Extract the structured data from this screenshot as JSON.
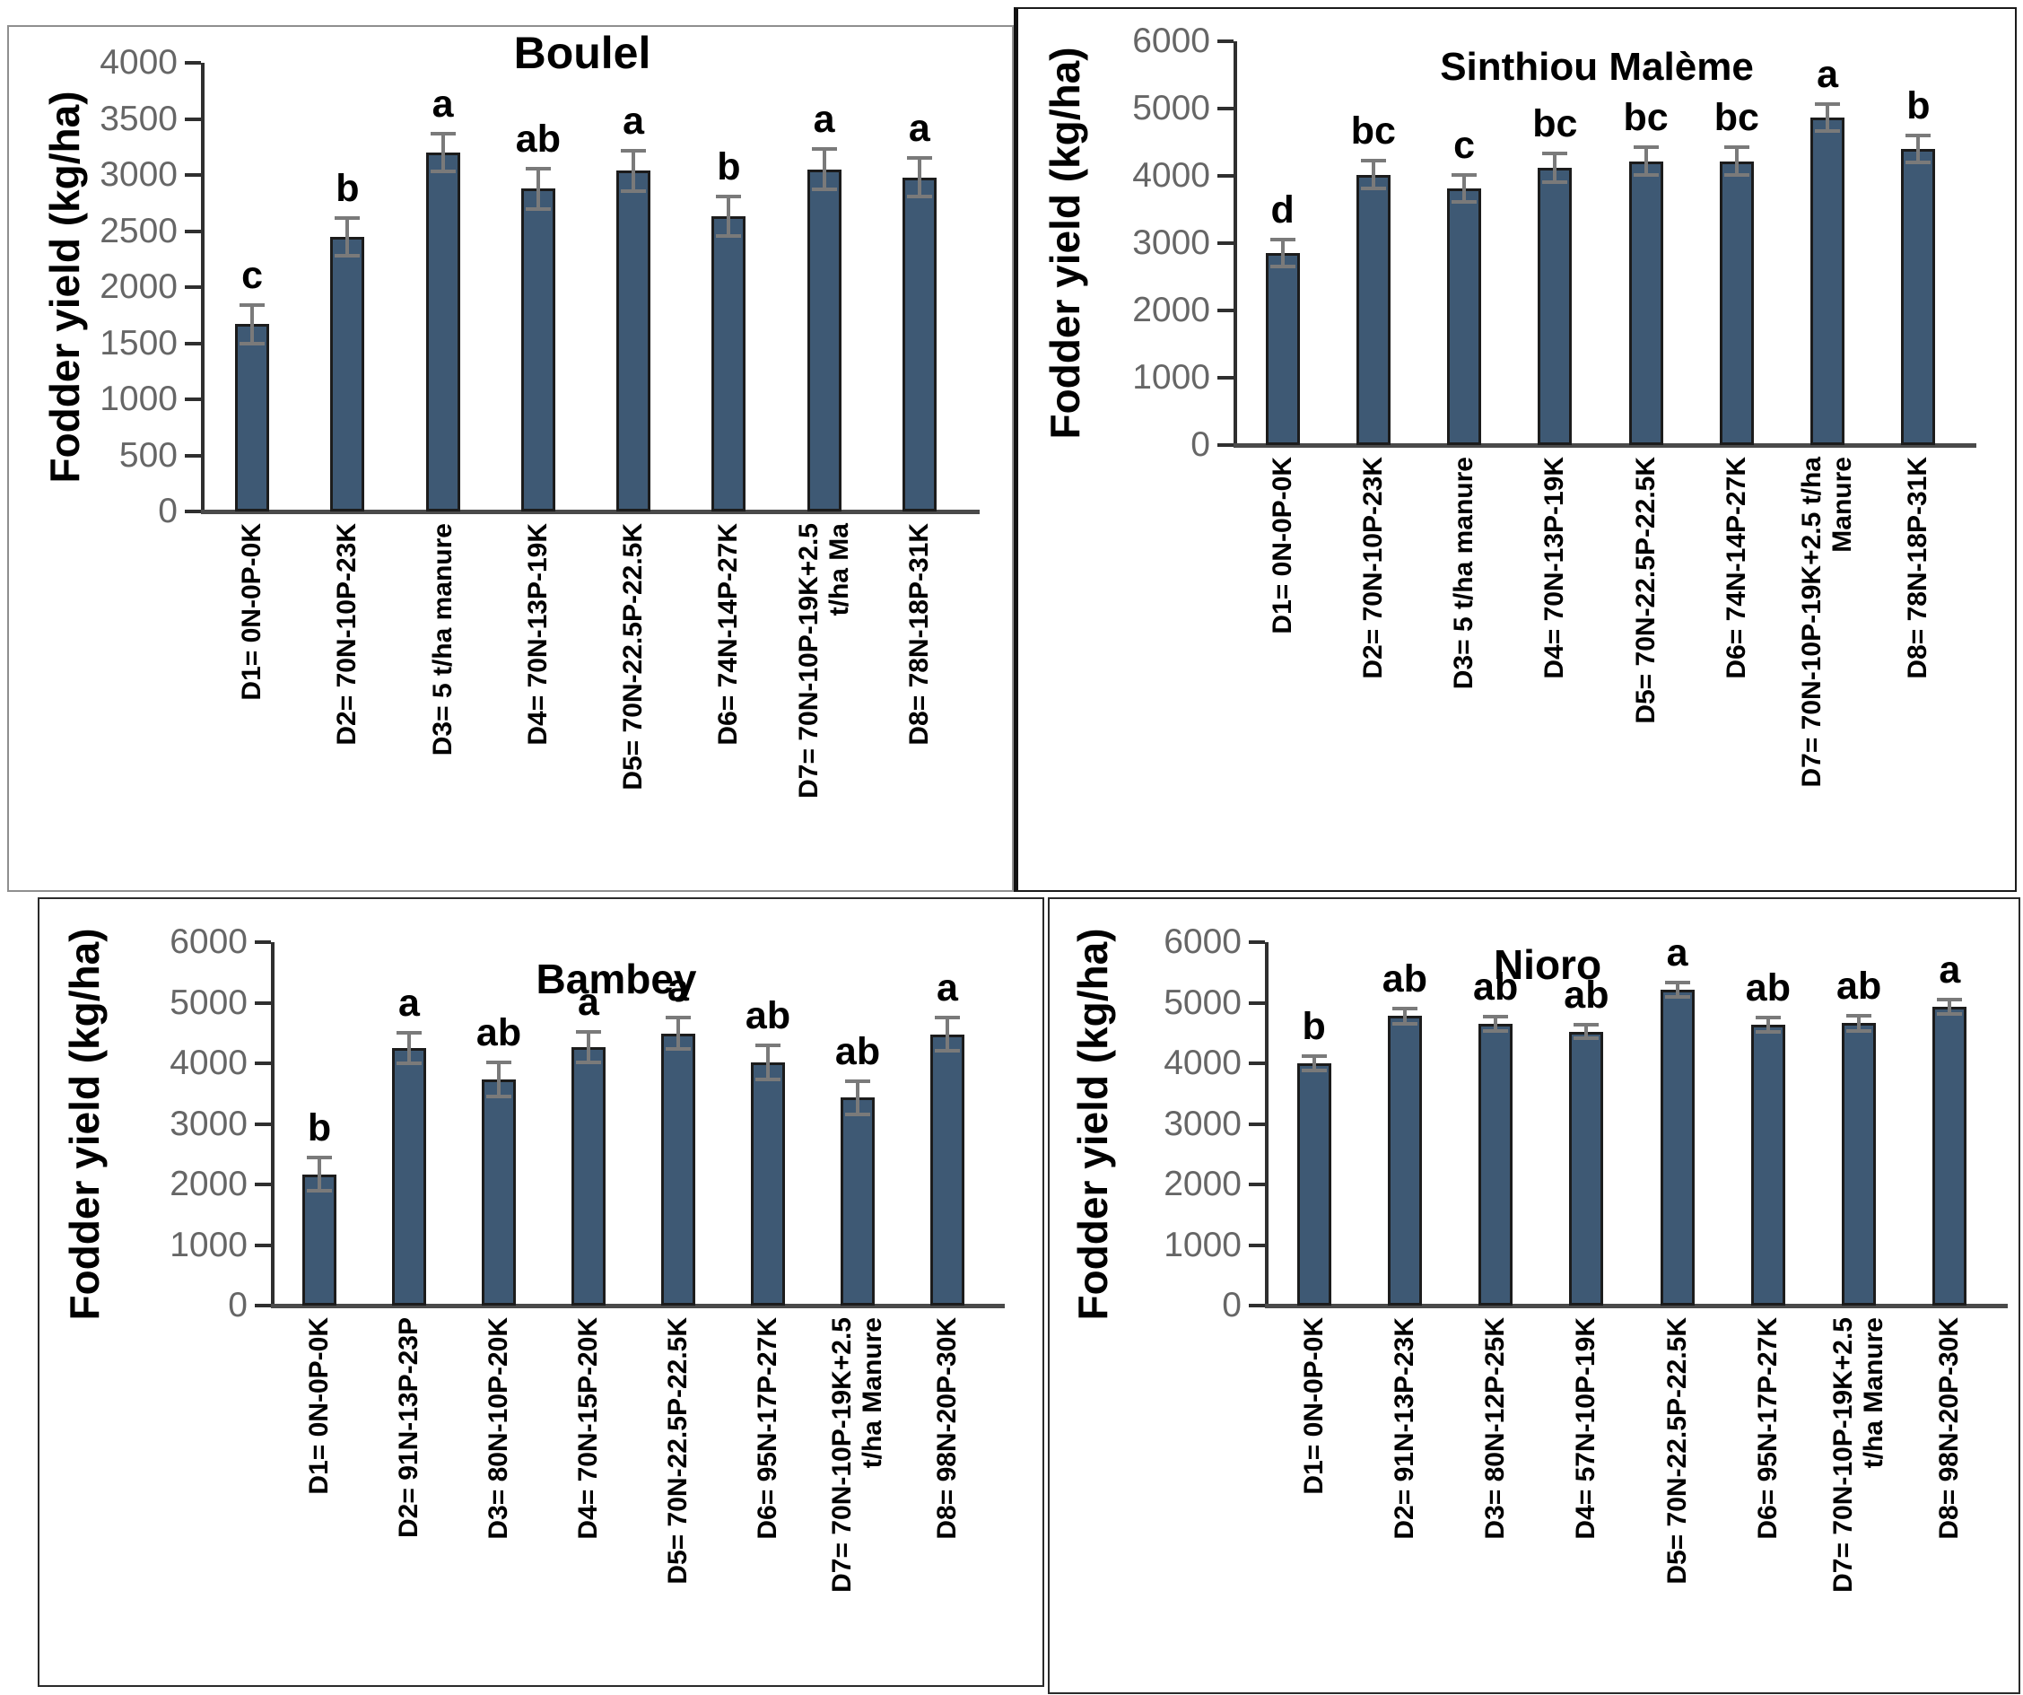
{
  "figure": {
    "y_axis_title": "Fodder yield (kg/ha)"
  },
  "chart_data": [
    {
      "type": "bar",
      "title": "Boulel",
      "ylabel": "Fodder yield (kg/ha)",
      "ylim": [
        0,
        4000
      ],
      "ytick_step": 500,
      "grid": false,
      "legend": "none",
      "bar_color": "#3e5974",
      "error_bar_color": "#7a7a7a",
      "categories": [
        "D1= 0N-0P-0K",
        "D2= 70N-10P-23K",
        "D3= 5 t/ha manure",
        "D4= 70N-13P-19K",
        "D5= 70N-22.5P-22.5K",
        "D6= 74N-14P-27K",
        "D7= 70N-10P-19K+2.5\nt/ha Ma",
        "D8= 78N-18P-31K"
      ],
      "values": [
        1670,
        2450,
        3200,
        2880,
        3040,
        2630,
        3050,
        2980
      ],
      "errors": [
        170,
        170,
        170,
        180,
        180,
        175,
        180,
        175
      ],
      "sig_letters": [
        "c",
        "b",
        "a",
        "ab",
        "a",
        "b",
        "a",
        "a"
      ]
    },
    {
      "type": "bar",
      "title": "Sinthiou Malème",
      "ylabel": "Fodder yield (kg/ha)",
      "ylim": [
        0,
        6000
      ],
      "ytick_step": 1000,
      "grid": false,
      "legend": "none",
      "bar_color": "#3e5974",
      "error_bar_color": "#7a7a7a",
      "categories": [
        "D1= 0N-0P-0K",
        "D2= 70N-10P-23K",
        "D3= 5 t/ha manure",
        "D4= 70N-13P-19K",
        "D5= 70N-22.5P-22.5K",
        "D6= 74N-14P-27K",
        "D7= 70N-10P-19K+2.5 t/ha\nManure",
        "D8= 78N-18P-31K"
      ],
      "values": [
        2850,
        4020,
        3820,
        4120,
        4220,
        4220,
        4870,
        4400
      ],
      "errors": [
        200,
        210,
        200,
        210,
        210,
        210,
        200,
        200
      ],
      "sig_letters": [
        "d",
        "bc",
        "c",
        "bc",
        "bc",
        "bc",
        "a",
        "b"
      ]
    },
    {
      "type": "bar",
      "title": "Bambey",
      "ylabel": "Fodder yield (kg/ha)",
      "ylim": [
        0,
        6000
      ],
      "ytick_step": 1000,
      "grid": false,
      "legend": "none",
      "bar_color": "#3e5974",
      "error_bar_color": "#7a7a7a",
      "categories": [
        "D1= 0N-0P-0K",
        "D2= 91N-13P-23P",
        "D3= 80N-10P-20K",
        "D4= 70N-15P-20K",
        "D5= 70N-22.5P-22.5K",
        "D6= 95N-17P-27K",
        "D7= 70N-10P-19K+2.5\nt/ha Manure",
        "D8= 98N-20P-30K"
      ],
      "values": [
        2170,
        4250,
        3730,
        4270,
        4490,
        4010,
        3430,
        4480
      ],
      "errors": [
        280,
        250,
        280,
        250,
        260,
        280,
        270,
        270
      ],
      "sig_letters": [
        "b",
        "a",
        "ab",
        "a",
        "a",
        "ab",
        "ab",
        "a"
      ]
    },
    {
      "type": "bar",
      "title": "Nioro",
      "ylabel": "Fodder yield (kg/ha)",
      "ylim": [
        0,
        6000
      ],
      "ytick_step": 1000,
      "grid": false,
      "legend": "none",
      "bar_color": "#3e5974",
      "error_bar_color": "#7a7a7a",
      "categories": [
        "D1= 0N-0P-0K",
        "D2= 91N-13P-23K",
        "D3= 80N-12P-25K",
        "D4= 57N-10P-19K",
        "D5= 70N-22.5P-22.5K",
        "D6= 95N-17P-27K",
        "D7= 70N-10P-19K+2.5\nt/ha Manure",
        "D8= 98N-20P-30K"
      ],
      "values": [
        4000,
        4780,
        4650,
        4520,
        5210,
        4640,
        4660,
        4930
      ],
      "errors": [
        120,
        130,
        120,
        110,
        120,
        120,
        120,
        120
      ],
      "sig_letters": [
        "b",
        "ab",
        "ab",
        "ab",
        "a",
        "ab",
        "ab",
        "a"
      ]
    }
  ]
}
